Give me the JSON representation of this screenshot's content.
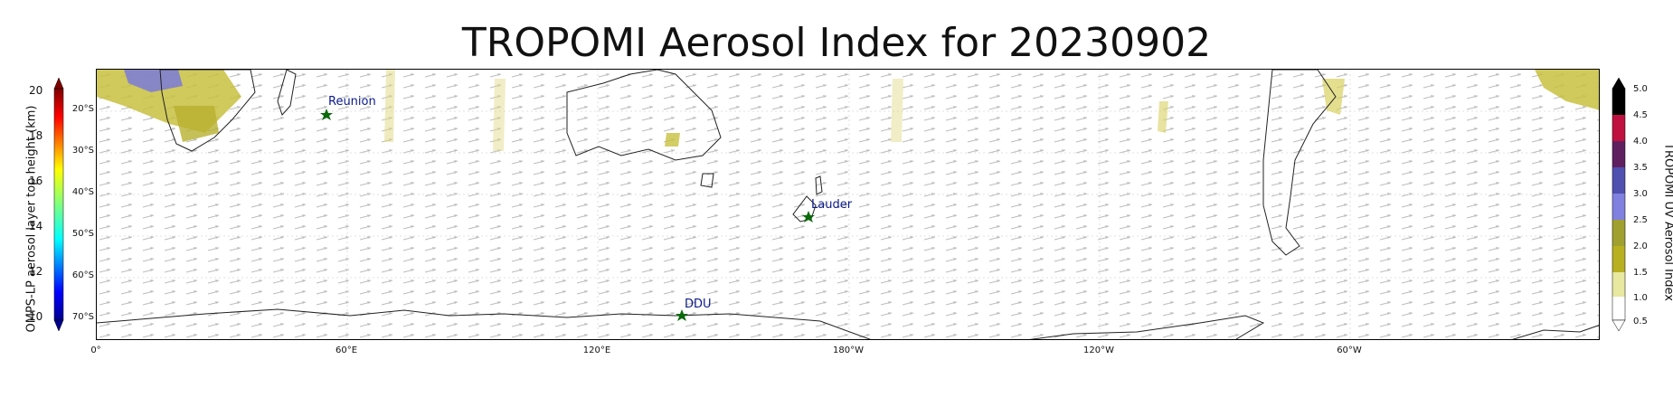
{
  "title": "TROPOMI Aerosol Index for 20230902",
  "map": {
    "latitude_labels": [
      "20°S",
      "30°S",
      "40°S",
      "50°S",
      "60°S",
      "70°S"
    ],
    "longitude_labels": [
      "0°",
      "60°E",
      "120°E",
      "180°W",
      "120°W",
      "60°W"
    ],
    "sites": [
      {
        "name": "Reunion",
        "marker": "green-star"
      },
      {
        "name": "Lauder",
        "marker": "green-star"
      },
      {
        "name": "DDU",
        "marker": "green-star"
      }
    ],
    "wind_vectors": "gray-arrows",
    "gridlines": true
  },
  "left_colorbar": {
    "label": "OMPS-LP aerosol layer top height (km)",
    "ticks": [
      "20",
      "18",
      "16",
      "14",
      "12",
      "10"
    ],
    "colormap": "jet",
    "extend": "both"
  },
  "right_colorbar": {
    "label": "TROPOMI UV Aerosol Index",
    "ticks": [
      "5.0",
      "4.5",
      "4.0",
      "3.5",
      "3.0",
      "2.5",
      "2.0",
      "1.5",
      "1.0",
      "0.5"
    ],
    "colors": [
      "#ffffff",
      "#e8e8a0",
      "#b8b020",
      "#a0a030",
      "#8080e0",
      "#5050b0",
      "#602060",
      "#c01040",
      "#000000"
    ],
    "extend": "both"
  }
}
